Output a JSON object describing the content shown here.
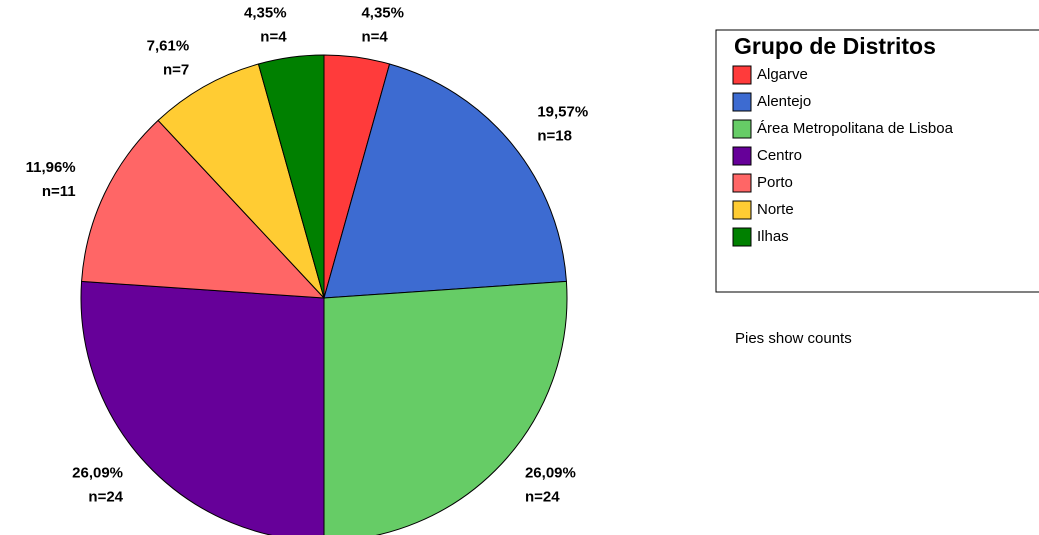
{
  "chart_data": {
    "type": "pie",
    "categories": [
      "Algarve",
      "Alentejo",
      "Área Metropolitana de Lisboa",
      "Centro",
      "Porto",
      "Norte",
      "Ilhas"
    ],
    "values": [
      4,
      18,
      24,
      24,
      11,
      7,
      4
    ],
    "value_labels": [
      "n=4",
      "n=18",
      "n=24",
      "n=24",
      "n=11",
      "n=7",
      "n=4"
    ],
    "percents": [
      4.35,
      19.57,
      26.09,
      26.09,
      11.96,
      7.61,
      4.35
    ],
    "percent_labels": [
      "4,35%",
      "19,57%",
      "26,09%",
      "26,09%",
      "11,96%",
      "7,61%",
      "4,35%"
    ],
    "colors": [
      "#ff3b3b",
      "#3d6bd1",
      "#66cc66",
      "#660099",
      "#ff6666",
      "#ffcc33",
      "#008000"
    ],
    "legend_title": "Grupo de Distritos",
    "note": "Pies show counts"
  }
}
